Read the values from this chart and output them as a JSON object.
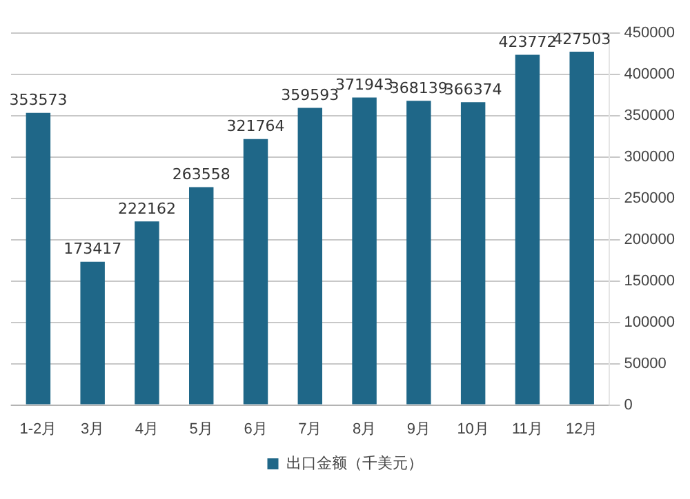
{
  "chart_data": {
    "type": "bar",
    "categories": [
      "1-2月",
      "3月",
      "4月",
      "5月",
      "6月",
      "7月",
      "8月",
      "9月",
      "10月",
      "11月",
      "12月"
    ],
    "series": [
      {
        "name": "出口金额（千美元）",
        "color": "#1f6788",
        "values": [
          353573,
          173417,
          222162,
          263558,
          321764,
          359593,
          371943,
          368139,
          366374,
          423772,
          427503
        ]
      }
    ],
    "ylim": [
      0,
      450000
    ],
    "yticks": [
      0,
      50000,
      100000,
      150000,
      200000,
      250000,
      300000,
      350000,
      400000,
      450000
    ],
    "grid": "y",
    "legend": "bottom",
    "data_labels": true
  }
}
